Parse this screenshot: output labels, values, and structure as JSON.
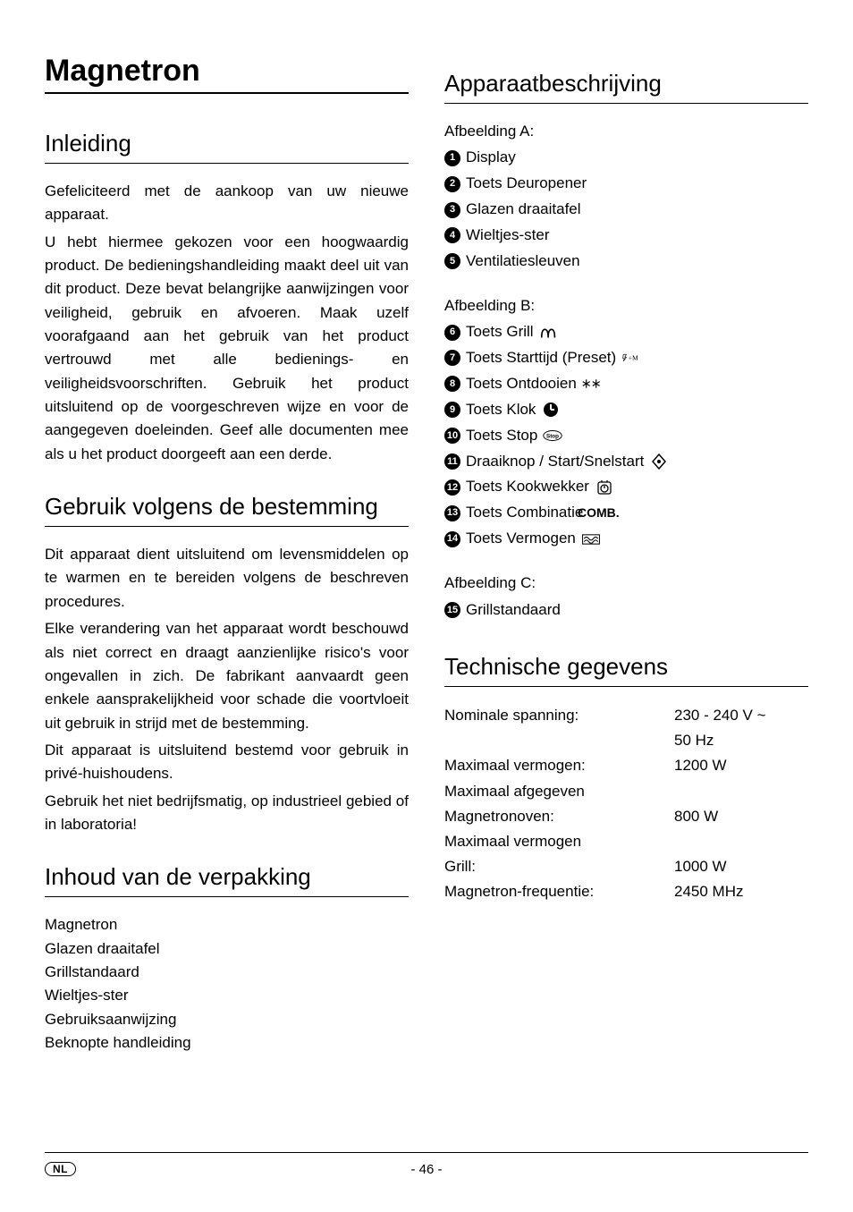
{
  "left": {
    "mainTitle": "Magnetron",
    "intro": {
      "heading": "Inleiding",
      "p1": "Gefeliciteerd met de aankoop van uw nieuwe apparaat.",
      "p2": "U hebt hiermee gekozen voor een hoogwaardig product. De bedieningshandleiding maakt deel uit van dit product. Deze bevat belangrijke aanwijzingen voor veiligheid, gebruik en afvoeren. Maak uzelf voorafgaand aan het gebruik van het product vertrouwd met alle bedienings- en veiligheidsvoorschriften. Gebruik het product uitsluitend op de voorgeschreven wijze en voor de aangegeven doeleinden. Geef alle documenten mee als u het product doorgeeft aan een derde."
    },
    "usage": {
      "heading": "Gebruik volgens de bestemming",
      "p1": "Dit apparaat dient uitsluitend om levensmiddelen op te warmen en te bereiden volgens de beschreven procedures.",
      "p2": "Elke verandering van het apparaat wordt beschouwd als niet correct en draagt aanzienlijke risico's voor ongevallen in zich. De fabrikant aanvaardt geen enkele aansprakelijkheid voor schade die voortvloeit uit gebruik in strijd met de bestemming.",
      "p3": "Dit apparaat is uitsluitend bestemd voor gebruik in privé-huishoudens.",
      "p4": "Gebruik het niet bedrijfsmatig, op industrieel gebied of in laboratoria!"
    },
    "package": {
      "heading": "Inhoud van de verpakking",
      "items": [
        "Magnetron",
        "Glazen draaitafel",
        "Grillstandaard",
        "Wieltjes-ster",
        "Gebruiksaanwijzing",
        "Beknopte handleiding"
      ]
    }
  },
  "right": {
    "desc": {
      "heading": "Apparaatbeschrijving",
      "groupA": {
        "label": "Afbeelding A:",
        "items": [
          {
            "n": "1",
            "t": "Display"
          },
          {
            "n": "2",
            "t": "Toets Deuropener"
          },
          {
            "n": "3",
            "t": "Glazen draaitafel"
          },
          {
            "n": "4",
            "t": "Wieltjes-ster"
          },
          {
            "n": "5",
            "t": "Ventilatiesleuven"
          }
        ]
      },
      "groupB": {
        "label": "Afbeelding B:",
        "items": [
          {
            "n": "6",
            "t": "Toets Grill",
            "icon": "grill"
          },
          {
            "n": "7",
            "t": "Toets Starttijd (Preset)",
            "icon": "preset"
          },
          {
            "n": "8",
            "t": "Toets Ontdooien",
            "icon": "defrost"
          },
          {
            "n": "9",
            "t": "Toets Klok",
            "icon": "clock"
          },
          {
            "n": "10",
            "t": "Toets Stop",
            "icon": "stop"
          },
          {
            "n": "11",
            "t": "Draaiknop / Start/Snelstart",
            "icon": "dial"
          },
          {
            "n": "12",
            "t": "Toets Kookwekker",
            "icon": "timer"
          },
          {
            "n": "13",
            "t": "Toets Combinatie",
            "icon": "comb"
          },
          {
            "n": "14",
            "t": "Toets Vermogen",
            "icon": "power"
          }
        ]
      },
      "groupC": {
        "label": "Afbeelding C:",
        "items": [
          {
            "n": "15",
            "t": "Grillstandaard"
          }
        ]
      }
    },
    "tech": {
      "heading": "Technische gegevens",
      "rows": [
        {
          "l": "Nominale spanning:",
          "v": "230 - 240 V ~"
        },
        {
          "l": "",
          "v": "50 Hz"
        },
        {
          "l": "Maximaal vermogen:",
          "v": "1200 W"
        },
        {
          "l": "Maximaal afgegeven",
          "v": ""
        },
        {
          "l": "Magnetronoven:",
          "v": "800 W"
        },
        {
          "l": "Maximaal vermogen",
          "v": ""
        },
        {
          "l": "Grill:",
          "v": "1000 W"
        },
        {
          "l": "Magnetron-frequentie:",
          "v": "2450 MHz"
        }
      ]
    }
  },
  "footer": {
    "lang": "NL",
    "page": "- 46 -"
  },
  "icons": {
    "grill": "<svg viewBox='0 0 24 16' width='22' height='16'><path d='M3 14 Q3 4 7 4 Q11 4 11 14 M11 14 Q11 4 15 4 Q19 4 19 14' fill='none' stroke='#000' stroke-width='1.8'/></svg>",
    "preset": "<svg viewBox='0 0 40 18' width='38' height='16'><path d='M4 2 L10 2 L7 8 L10 8 L4 16 L6 10 L3 10 Z' fill='none' stroke='#000' stroke-width='1.2'/><text x='14' y='14' font-size='14' font-family='serif'>+M</text></svg>",
    "defrost": "<svg viewBox='0 0 28 16' width='26' height='14'><g stroke='#000' stroke-width='1.5'><line x1='6' y1='2' x2='6' y2='14'/><line x1='1' y1='5' x2='11' y2='11'/><line x1='1' y1='11' x2='11' y2='5'/><line x1='20' y1='2' x2='20' y2='14'/><line x1='15' y1='5' x2='25' y2='11'/><line x1='15' y1='11' x2='25' y2='5'/></g></svg>",
    "clock": "<svg viewBox='0 0 18 18' width='18' height='18'><circle cx='9' cy='9' r='8' fill='#000'/><path d='M9 9 L9 3 M9 9 L13 9' stroke='#fff' stroke-width='2' fill='none'/></svg>",
    "stop": "<svg viewBox='0 0 28 16' width='26' height='14'><ellipse cx='14' cy='8' rx='13' ry='7' fill='none' stroke='#000' stroke-width='1.2'/><text x='14' y='11' font-size='8' text-anchor='middle' font-weight='bold'>Stop</text></svg>",
    "dial": "<svg viewBox='0 0 18 18' width='18' height='18'><path d='M9 1 L16 9 L9 17 L2 9 Z' fill='none' stroke='#000' stroke-width='1.5'/><circle cx='9' cy='9' r='2' fill='#000'/></svg>",
    "timer": "<svg viewBox='0 0 18 18' width='18' height='18'><rect x='2' y='3' width='14' height='13' rx='2' fill='none' stroke='#000' stroke-width='1.3'/><circle cx='9' cy='10' r='4' fill='none' stroke='#000' stroke-width='1.3'/><line x1='9' y1='10' x2='9' y2='7' stroke='#000' stroke-width='1.3'/><line x1='6' y1='1' x2='6' y2='3' stroke='#000' stroke-width='1.3'/><line x1='12' y1='1' x2='12' y2='3' stroke='#000' stroke-width='1.3'/></svg>",
    "comb": "<text style='font-size:14px;font-weight:700'>COMB.</text>",
    "power": "<svg viewBox='0 0 24 14' width='22' height='12'><rect x='1' y='1' width='22' height='12' fill='none' stroke='#000' stroke-width='1.2'/><path d='M3 10 Q6 6 9 10 T15 10 T21 10' fill='none' stroke='#000' stroke-width='1.2'/><path d='M3 6 Q6 2 9 6 T15 6 T21 6' fill='none' stroke='#000' stroke-width='1.2'/></svg>"
  }
}
